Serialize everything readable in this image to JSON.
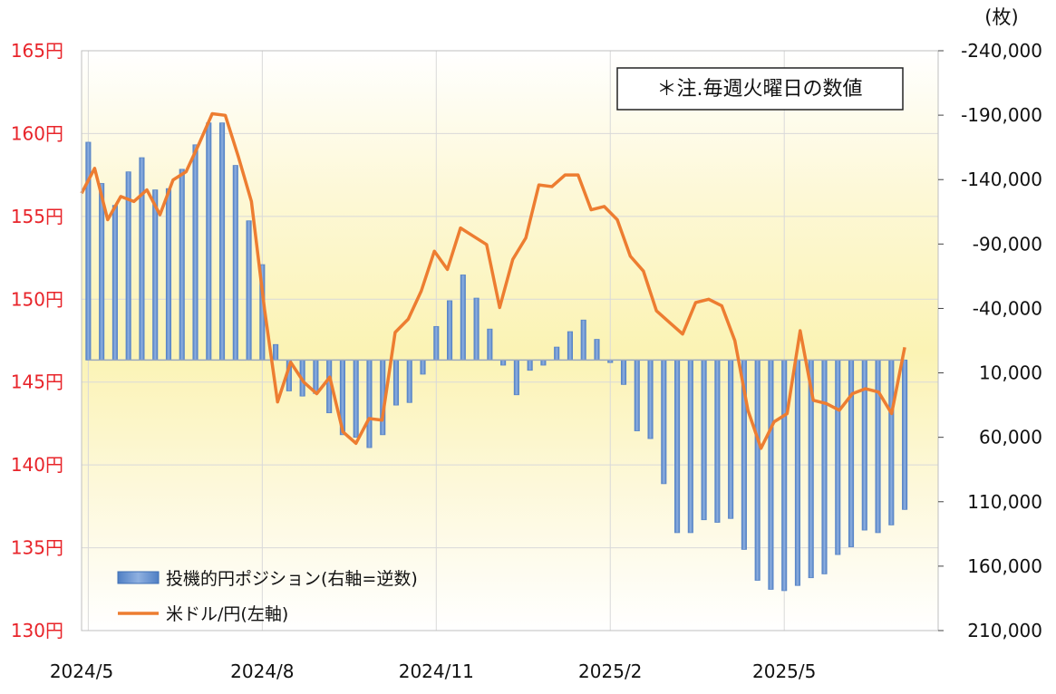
{
  "chart_data": {
    "type": "bar+line",
    "note": "＊注.毎週火曜日の数値",
    "right_axis_unit": "(枚)",
    "left_axis": {
      "min": 130,
      "max": 165,
      "ticks": [
        165,
        160,
        155,
        150,
        145,
        140,
        135,
        130
      ],
      "tick_labels": [
        "165円",
        "160円",
        "155円",
        "150円",
        "145円",
        "140円",
        "135円",
        "130円"
      ]
    },
    "right_axis": {
      "inverted": true,
      "min": -240000,
      "max": 210000,
      "ticks": [
        -240000,
        -190000,
        -140000,
        -90000,
        -40000,
        10000,
        60000,
        110000,
        160000,
        210000
      ],
      "tick_labels": [
        "-240,000",
        "-190,000",
        "-140,000",
        "-90,000",
        "-40,000",
        "10,000",
        "60,000",
        "110,000",
        "160,000",
        "210,000"
      ]
    },
    "x_axis": {
      "tick_labels": [
        "2024/5",
        "2024/8",
        "2024/11",
        "2025/2",
        "2025/5"
      ],
      "tick_index": [
        0,
        13,
        26,
        39,
        52
      ]
    },
    "series": [
      {
        "name": "投機的円ポジション(右軸=逆数)",
        "type": "bar",
        "values": [
          -169000,
          -137000,
          -120000,
          -146000,
          -157000,
          -132000,
          -133000,
          -148000,
          -167000,
          -184000,
          -184000,
          -151000,
          -108000,
          -74000,
          -12000,
          24000,
          28000,
          26000,
          41000,
          58000,
          60000,
          68000,
          58000,
          35000,
          33000,
          11000,
          -26000,
          -46000,
          -66000,
          -48000,
          -24000,
          4000,
          27000,
          8000,
          4000,
          -10000,
          -22000,
          -31000,
          -16000,
          2000,
          19000,
          55000,
          61000,
          96000,
          134000,
          134000,
          124000,
          126000,
          123000,
          147000,
          171000,
          178000,
          179000,
          175000,
          169000,
          166000,
          151000,
          145000,
          132000,
          134000,
          128000,
          116000
        ],
        "color": "#5b86c6"
      },
      {
        "name": "米ドル/円(左軸)",
        "type": "line",
        "values": [
          156.4,
          157.9,
          154.8,
          156.2,
          155.9,
          156.6,
          155.1,
          157.2,
          157.7,
          159.4,
          161.2,
          161.1,
          158.6,
          155.9,
          149.4,
          143.8,
          146.2,
          145.0,
          144.3,
          145.3,
          142.0,
          141.3,
          142.8,
          142.7,
          148.0,
          148.8,
          150.5,
          152.9,
          151.8,
          154.3,
          153.8,
          153.3,
          149.5,
          152.4,
          153.7,
          156.9,
          156.8,
          157.5,
          157.5,
          155.4,
          155.6,
          154.8,
          152.6,
          151.7,
          149.3,
          148.6,
          147.9,
          149.8,
          150.0,
          149.6,
          147.5,
          143.3,
          141.0,
          142.6,
          143.1,
          148.1,
          143.9,
          143.7,
          143.3,
          144.3,
          144.6,
          144.4,
          143.1,
          147.1
        ],
        "color": "#ed7d31"
      }
    ]
  }
}
